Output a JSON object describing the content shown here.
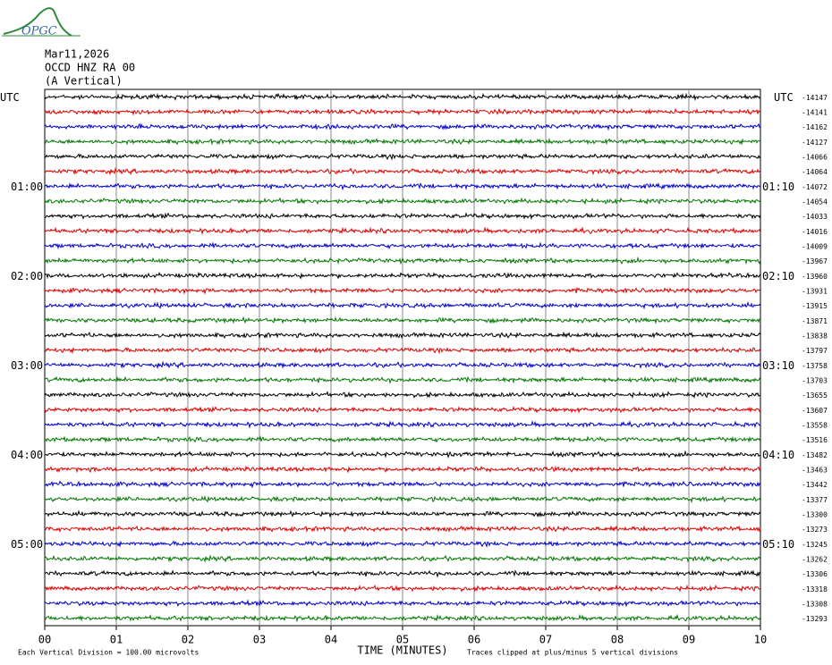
{
  "logo": "OPGC",
  "header": {
    "date": "Mar11,2026",
    "station": "OCCD HNZ RA 00",
    "component": "(A Vertical)"
  },
  "left_labels": [
    "UTC",
    "01:00",
    "02:00",
    "03:00",
    "04:00",
    "05:00"
  ],
  "right_labels": [
    "UTC",
    "01:10",
    "02:10",
    "03:10",
    "04:10",
    "05:10"
  ],
  "offsets": [
    -14147,
    -14141,
    -14162,
    -14127,
    -14066,
    -14064,
    -14072,
    -14054,
    -14033,
    -14016,
    -14009,
    -13967,
    -13960,
    -13931,
    -13915,
    -13871,
    -13838,
    -13797,
    -13758,
    -13703,
    -13655,
    -13607,
    -13558,
    -13516,
    -13482,
    -13463,
    -13442,
    -13377,
    -13300,
    -13273,
    -13245,
    -13262,
    -13306,
    -13318,
    -13308,
    -13293
  ],
  "x_axis": {
    "ticks": [
      "00",
      "01",
      "02",
      "03",
      "04",
      "05",
      "06",
      "07",
      "08",
      "09",
      "10"
    ],
    "title": "TIME (MINUTES)"
  },
  "footer": {
    "scale": "Each Vertical Division =  100.00 microvolts",
    "clip": "Traces clipped at plus/minus 5 vertical divisions"
  }
}
